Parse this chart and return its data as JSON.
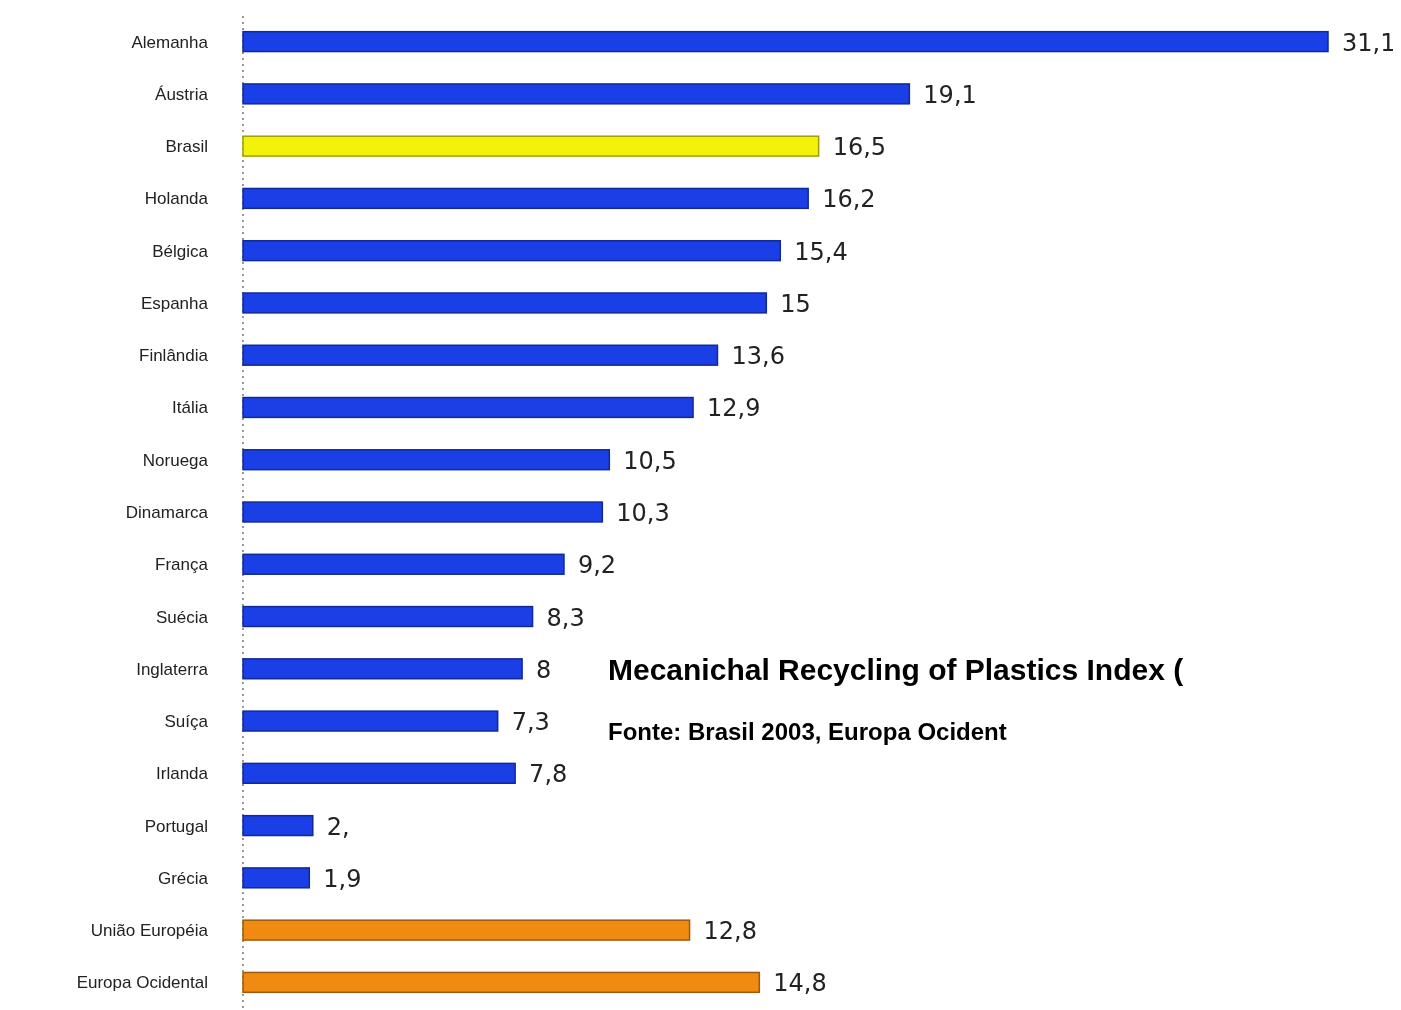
{
  "chart_data": {
    "type": "bar",
    "orientation": "horizontal",
    "title": "Mecanichal Recycling of Plastics Index (",
    "subtitle": "Fonte: Brasil 2003, Europa Ocident",
    "categories": [
      "Alemanha",
      "Áustria",
      "Brasil",
      "Holanda",
      "Bélgica",
      "Espanha",
      "Finlândia",
      "Itália",
      "Noruega",
      "Dinamarca",
      "França",
      "Suécia",
      "Inglaterra",
      "Suíça",
      "Irlanda",
      "Portugal",
      "Grécia",
      "União Européia",
      "Europa Ocidental"
    ],
    "values": [
      31.1,
      19.1,
      16.5,
      16.2,
      15.4,
      15,
      13.6,
      12.9,
      10.5,
      10.3,
      9.2,
      8.3,
      8,
      7.3,
      7.8,
      2,
      1.9,
      12.8,
      14.8
    ],
    "value_labels": [
      "31,1",
      "19,1",
      "16,5",
      "16,2",
      "15,4",
      "15",
      "13,6",
      "12,9",
      "10,5",
      "10,3",
      "9,2",
      "8,3",
      "8",
      "7,3",
      "7,8",
      "2,",
      "1,9",
      "12,8",
      "14,8"
    ],
    "colors": [
      "#1a3fe6",
      "#1a3fe6",
      "#f2f20a",
      "#1a3fe6",
      "#1a3fe6",
      "#1a3fe6",
      "#1a3fe6",
      "#1a3fe6",
      "#1a3fe6",
      "#1a3fe6",
      "#1a3fe6",
      "#1a3fe6",
      "#1a3fe6",
      "#1a3fe6",
      "#1a3fe6",
      "#1a3fe6",
      "#1a3fe6",
      "#f08a10",
      "#f08a10"
    ],
    "tick_labels": "y"
  }
}
